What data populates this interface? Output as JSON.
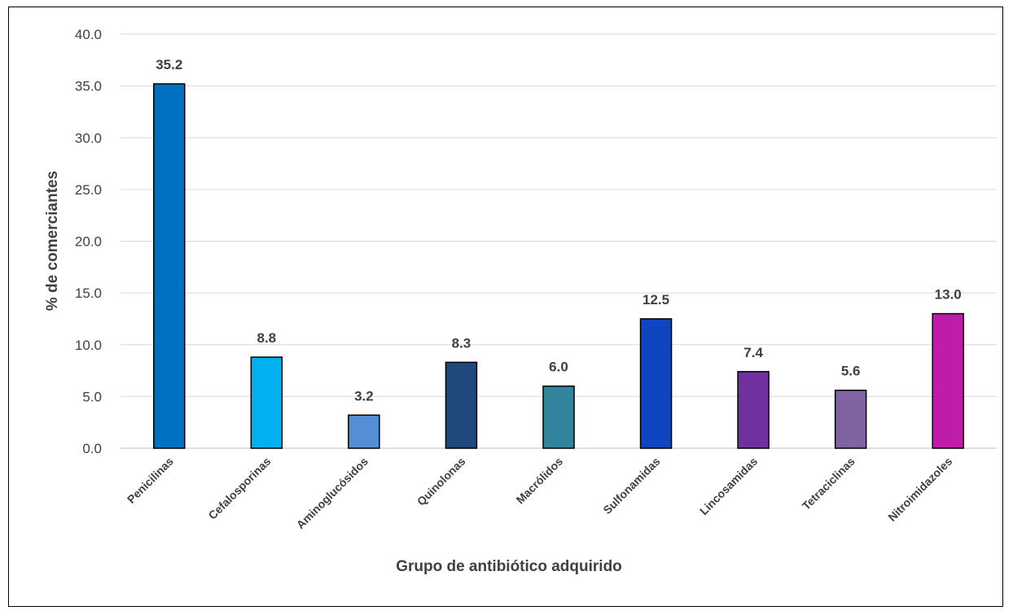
{
  "chart_data": {
    "type": "bar",
    "categories": [
      "Penicilinas",
      "Cefalosporinas",
      "Aminoglucósidos",
      "Quinolonas",
      "Macrólidos",
      "Sulfonamidas",
      "Lincosamidas",
      "Tetraciclinas",
      "Nitroimidazoles"
    ],
    "values": [
      35.2,
      8.8,
      3.2,
      8.3,
      6.0,
      12.5,
      7.4,
      5.6,
      13.0
    ],
    "data_labels": [
      "35.2",
      "8.8",
      "3.2",
      "8.3",
      "6.0",
      "12.5",
      "7.4",
      "5.6",
      "13.0"
    ],
    "bar_colors": [
      "#0070C0",
      "#00B0F0",
      "#558ED5",
      "#1F497D",
      "#31849B",
      "#0F45BE",
      "#7030A0",
      "#8064A2",
      "#C01CAA"
    ],
    "xlabel": "Grupo de antibiótico adquirido",
    "ylabel": "% de comerciantes",
    "ylim": [
      0,
      40
    ],
    "yticks": [
      "0.0",
      "5.0",
      "10.0",
      "15.0",
      "20.0",
      "25.0",
      "30.0",
      "35.0",
      "40.0"
    ],
    "grid": true,
    "legend": "none"
  }
}
